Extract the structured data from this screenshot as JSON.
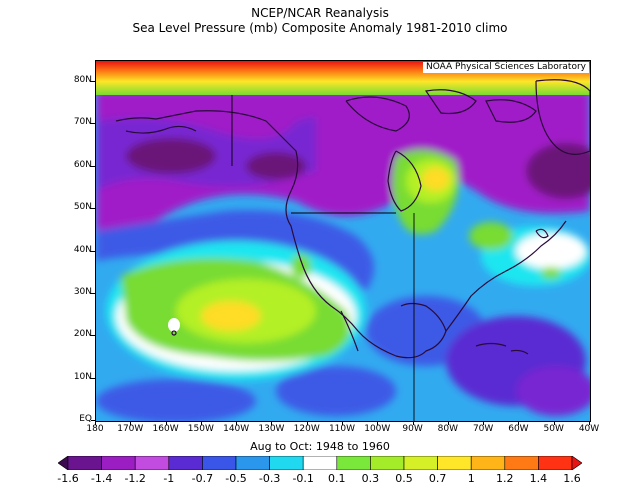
{
  "title_line1": "NCEP/NCAR Reanalysis",
  "title_line2": "Sea Level Pressure (mb) Composite Anomaly 1981-2010 climo",
  "credit": "NOAA Physical Sciences Laboratory",
  "caption": "Aug to Oct: 1948 to 1960",
  "y_labels": [
    "80N",
    "70N",
    "60N",
    "50N",
    "40N",
    "30N",
    "20N",
    "10N",
    "EQ"
  ],
  "x_labels": [
    "180",
    "170W",
    "160W",
    "150W",
    "140W",
    "130W",
    "120W",
    "110W",
    "100W",
    "90W",
    "80W",
    "70W",
    "60W",
    "50W",
    "40W"
  ],
  "colorbar": {
    "labels": [
      "-1.6",
      "-1.4",
      "-1.2",
      "-1",
      "-0.7",
      "-0.5",
      "-0.3",
      "-0.1",
      "0.1",
      "0.3",
      "0.5",
      "0.7",
      "1",
      "1.2",
      "1.4",
      "1.6"
    ],
    "colors": [
      "#3c0a50",
      "#6a1490",
      "#9a1ec2",
      "#c24be0",
      "#5a2ad2",
      "#3a56e8",
      "#2a96ec",
      "#20d8f0",
      "#ffffff",
      "#7ae83a",
      "#a4ec2a",
      "#d6f028",
      "#ffe628",
      "#ffb418",
      "#ff7a14",
      "#ff3214",
      "#e81414"
    ]
  },
  "map_colors": {
    "deep_purple": "#6a1478",
    "purple": "#a01ec8",
    "violet": "#7828d2",
    "blue": "#3c5ae6",
    "light_blue": "#32aaf0",
    "cyan": "#1ee6f0",
    "white": "#ffffff",
    "green": "#78dc32",
    "lime": "#b4f028",
    "yellow": "#ffdc28",
    "orange": "#ffa014",
    "red": "#f03214",
    "coast": "#2a0a3a"
  }
}
